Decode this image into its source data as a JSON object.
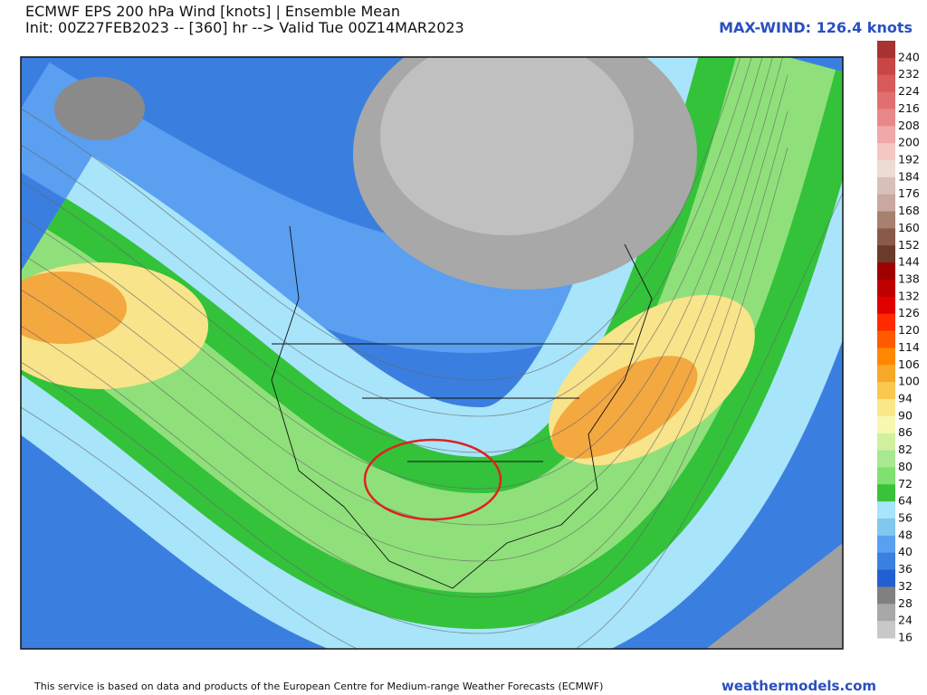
{
  "header": {
    "title": "ECMWF EPS 200 hPa Wind [knots] | Ensemble Mean",
    "subtitle": "Init: 00Z27FEB2023 -- [360] hr --> Valid Tue 00Z14MAR2023",
    "max_wind": "MAX-WIND: 126.4 knots"
  },
  "colorbar": {
    "labels": [
      "240",
      "232",
      "224",
      "216",
      "208",
      "200",
      "192",
      "184",
      "176",
      "168",
      "160",
      "152",
      "144",
      "138",
      "132",
      "126",
      "120",
      "114",
      "106",
      "100",
      "94",
      "90",
      "86",
      "82",
      "80",
      "72",
      "64",
      "56",
      "48",
      "40",
      "36",
      "32",
      "28",
      "24",
      "16"
    ],
    "colors": [
      "#a83232",
      "#c84646",
      "#d85a5a",
      "#e07070",
      "#e88888",
      "#f0a8a8",
      "#f4c8c0",
      "#ecdcd4",
      "#d8c0b8",
      "#c8a8a0",
      "#a88070",
      "#8a5a48",
      "#6a3a2a",
      "#a00000",
      "#c00000",
      "#e00000",
      "#ff2a00",
      "#ff5a00",
      "#ff8800",
      "#f8a828",
      "#f8c850",
      "#f8e888",
      "#f8f8b0",
      "#d0f0a0",
      "#a8e890",
      "#80e070",
      "#3ac23a",
      "#a8e4fa",
      "#80c8f0",
      "#5aa0f0",
      "#3a80e0",
      "#2060d0",
      "#808080",
      "#a8a8a8",
      "#c8c8c8"
    ]
  },
  "footer": {
    "credit": "This service is based on data and products of the European Centre for Medium-range Weather Forecasts (ECMWF)",
    "site": "weathermodels.com"
  }
}
